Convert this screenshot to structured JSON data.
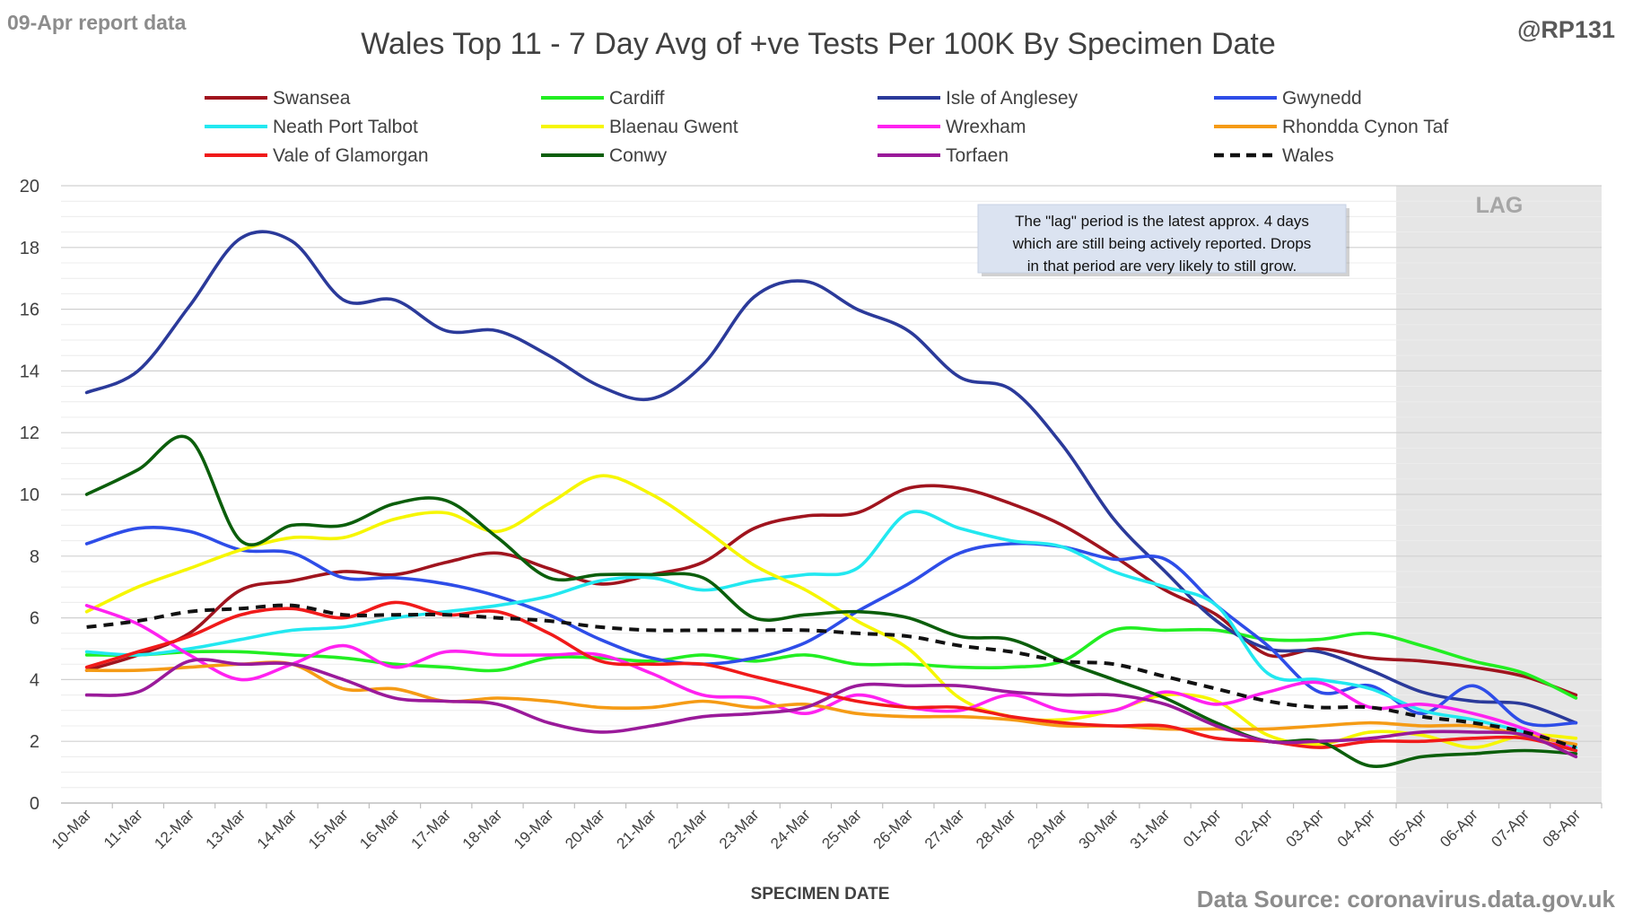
{
  "report_label": "09-Apr report data",
  "handle": "@RP131",
  "source": "Data Source: coronavirus.data.gov.uk",
  "callout": [
    "The \"lag\" period is the latest approx. 4 days",
    "which are still being actively reported.  Drops",
    "in that period are very likely to still grow."
  ],
  "chart_data": {
    "type": "line",
    "title": "Wales Top 11 - 7 Day Avg of +ve Tests Per 100K By Specimen Date",
    "xlabel": "SPECIMEN DATE",
    "ylabel": "",
    "ylim": [
      0,
      20
    ],
    "y_ticks": [
      0,
      2,
      4,
      6,
      8,
      10,
      12,
      14,
      16,
      18,
      20
    ],
    "grid": "horizontal major and minor",
    "legend_position": "top",
    "lag_label": "LAG",
    "lag_start": "04-Apr",
    "x": [
      "10-Mar",
      "11-Mar",
      "12-Mar",
      "13-Mar",
      "14-Mar",
      "15-Mar",
      "16-Mar",
      "17-Mar",
      "18-Mar",
      "19-Mar",
      "20-Mar",
      "21-Mar",
      "22-Mar",
      "23-Mar",
      "24-Mar",
      "25-Mar",
      "26-Mar",
      "27-Mar",
      "28-Mar",
      "29-Mar",
      "30-Mar",
      "31-Mar",
      "01-Apr",
      "02-Apr",
      "03-Apr",
      "04-Apr",
      "05-Apr",
      "06-Apr",
      "07-Apr",
      "08-Apr"
    ],
    "series": [
      {
        "name": "Swansea",
        "color": "#a0141e",
        "dashed": false,
        "values": [
          4.3,
          4.8,
          5.5,
          6.9,
          7.2,
          7.5,
          7.4,
          7.8,
          8.1,
          7.6,
          7.1,
          7.4,
          7.8,
          8.9,
          9.3,
          9.4,
          10.2,
          10.2,
          9.7,
          9.0,
          8.0,
          6.9,
          6.1,
          4.8,
          5.0,
          4.7,
          4.6,
          4.4,
          4.1,
          3.5
        ]
      },
      {
        "name": "Cardiff",
        "color": "#22ee22",
        "dashed": false,
        "values": [
          4.8,
          4.8,
          4.9,
          4.9,
          4.8,
          4.7,
          4.5,
          4.4,
          4.3,
          4.7,
          4.7,
          4.6,
          4.8,
          4.6,
          4.8,
          4.5,
          4.5,
          4.4,
          4.4,
          4.6,
          5.6,
          5.6,
          5.6,
          5.3,
          5.3,
          5.5,
          5.1,
          4.6,
          4.2,
          3.4
        ]
      },
      {
        "name": "Isle of Anglesey",
        "color": "#2b3a9a",
        "dashed": false,
        "values": [
          13.3,
          14.0,
          16.1,
          18.3,
          18.2,
          16.3,
          16.3,
          15.3,
          15.3,
          14.5,
          13.5,
          13.1,
          14.2,
          16.4,
          16.9,
          16.0,
          15.3,
          13.8,
          13.4,
          11.6,
          9.2,
          7.5,
          5.9,
          5.0,
          4.9,
          4.3,
          3.6,
          3.3,
          3.2,
          2.6
        ]
      },
      {
        "name": "Gwynedd",
        "color": "#2e4de8",
        "dashed": false,
        "values": [
          8.4,
          8.9,
          8.8,
          8.2,
          8.1,
          7.3,
          7.3,
          7.1,
          6.7,
          6.1,
          5.3,
          4.7,
          4.5,
          4.7,
          5.2,
          6.2,
          7.1,
          8.1,
          8.4,
          8.3,
          7.9,
          7.9,
          6.4,
          5.1,
          3.6,
          3.8,
          2.9,
          3.8,
          2.6,
          2.6
        ]
      },
      {
        "name": "Neath Port Talbot",
        "color": "#22e8f0",
        "dashed": false,
        "values": [
          4.9,
          4.8,
          5.0,
          5.3,
          5.6,
          5.7,
          6.0,
          6.2,
          6.4,
          6.7,
          7.2,
          7.3,
          6.9,
          7.2,
          7.4,
          7.6,
          9.4,
          8.9,
          8.5,
          8.3,
          7.5,
          7.0,
          6.4,
          4.2,
          4.0,
          3.7,
          3.0,
          2.7,
          2.3,
          1.8
        ]
      },
      {
        "name": "Blaenau Gwent",
        "color": "#f6f600",
        "dashed": false,
        "values": [
          6.2,
          7.0,
          7.6,
          8.2,
          8.6,
          8.6,
          9.2,
          9.4,
          8.8,
          9.7,
          10.6,
          10.0,
          8.9,
          7.7,
          6.9,
          5.9,
          5.0,
          3.4,
          2.8,
          2.7,
          3.0,
          3.5,
          3.3,
          2.2,
          1.9,
          2.3,
          2.2,
          1.8,
          2.2,
          2.1
        ]
      },
      {
        "name": "Wrexham",
        "color": "#ff22f0",
        "dashed": false,
        "values": [
          6.4,
          5.8,
          4.8,
          4.0,
          4.5,
          5.1,
          4.4,
          4.9,
          4.8,
          4.8,
          4.8,
          4.2,
          3.5,
          3.4,
          2.9,
          3.5,
          3.1,
          3.0,
          3.5,
          3.0,
          3.0,
          3.6,
          3.2,
          3.6,
          3.9,
          3.1,
          3.2,
          2.9,
          2.4,
          1.7
        ]
      },
      {
        "name": "Rhondda Cynon Taf",
        "color": "#f59b15",
        "dashed": false,
        "values": [
          4.3,
          4.3,
          4.4,
          4.5,
          4.5,
          3.7,
          3.7,
          3.3,
          3.4,
          3.3,
          3.1,
          3.1,
          3.3,
          3.1,
          3.2,
          2.9,
          2.8,
          2.8,
          2.7,
          2.5,
          2.5,
          2.4,
          2.4,
          2.4,
          2.5,
          2.6,
          2.5,
          2.5,
          2.2,
          1.9
        ]
      },
      {
        "name": "Vale of Glamorgan",
        "color": "#f01a1a",
        "dashed": false,
        "values": [
          4.4,
          4.9,
          5.4,
          6.1,
          6.3,
          6.0,
          6.5,
          6.1,
          6.2,
          5.5,
          4.6,
          4.5,
          4.5,
          4.1,
          3.7,
          3.3,
          3.1,
          3.1,
          2.8,
          2.6,
          2.5,
          2.5,
          2.1,
          2.0,
          1.8,
          2.0,
          2.0,
          2.1,
          2.1,
          1.7
        ]
      },
      {
        "name": "Conwy",
        "color": "#0b5e0b",
        "dashed": false,
        "values": [
          10.0,
          10.8,
          11.8,
          8.5,
          9.0,
          9.0,
          9.7,
          9.8,
          8.6,
          7.3,
          7.4,
          7.4,
          7.3,
          6.0,
          6.1,
          6.2,
          6.0,
          5.4,
          5.3,
          4.6,
          4.0,
          3.4,
          2.6,
          2.0,
          2.0,
          1.2,
          1.5,
          1.6,
          1.7,
          1.6
        ]
      },
      {
        "name": "Torfaen",
        "color": "#9a1a9a",
        "dashed": false,
        "values": [
          3.5,
          3.6,
          4.6,
          4.5,
          4.5,
          4.0,
          3.4,
          3.3,
          3.2,
          2.6,
          2.3,
          2.5,
          2.8,
          2.9,
          3.1,
          3.8,
          3.8,
          3.8,
          3.6,
          3.5,
          3.5,
          3.2,
          2.5,
          2.0,
          2.0,
          2.1,
          2.3,
          2.3,
          2.2,
          1.5
        ]
      },
      {
        "name": "Wales",
        "color": "#111111",
        "dashed": true,
        "values": [
          5.7,
          5.9,
          6.2,
          6.3,
          6.4,
          6.1,
          6.1,
          6.1,
          6.0,
          5.9,
          5.7,
          5.6,
          5.6,
          5.6,
          5.6,
          5.5,
          5.4,
          5.1,
          4.9,
          4.6,
          4.5,
          4.1,
          3.7,
          3.3,
          3.1,
          3.1,
          2.8,
          2.6,
          2.3,
          1.8
        ]
      }
    ]
  }
}
